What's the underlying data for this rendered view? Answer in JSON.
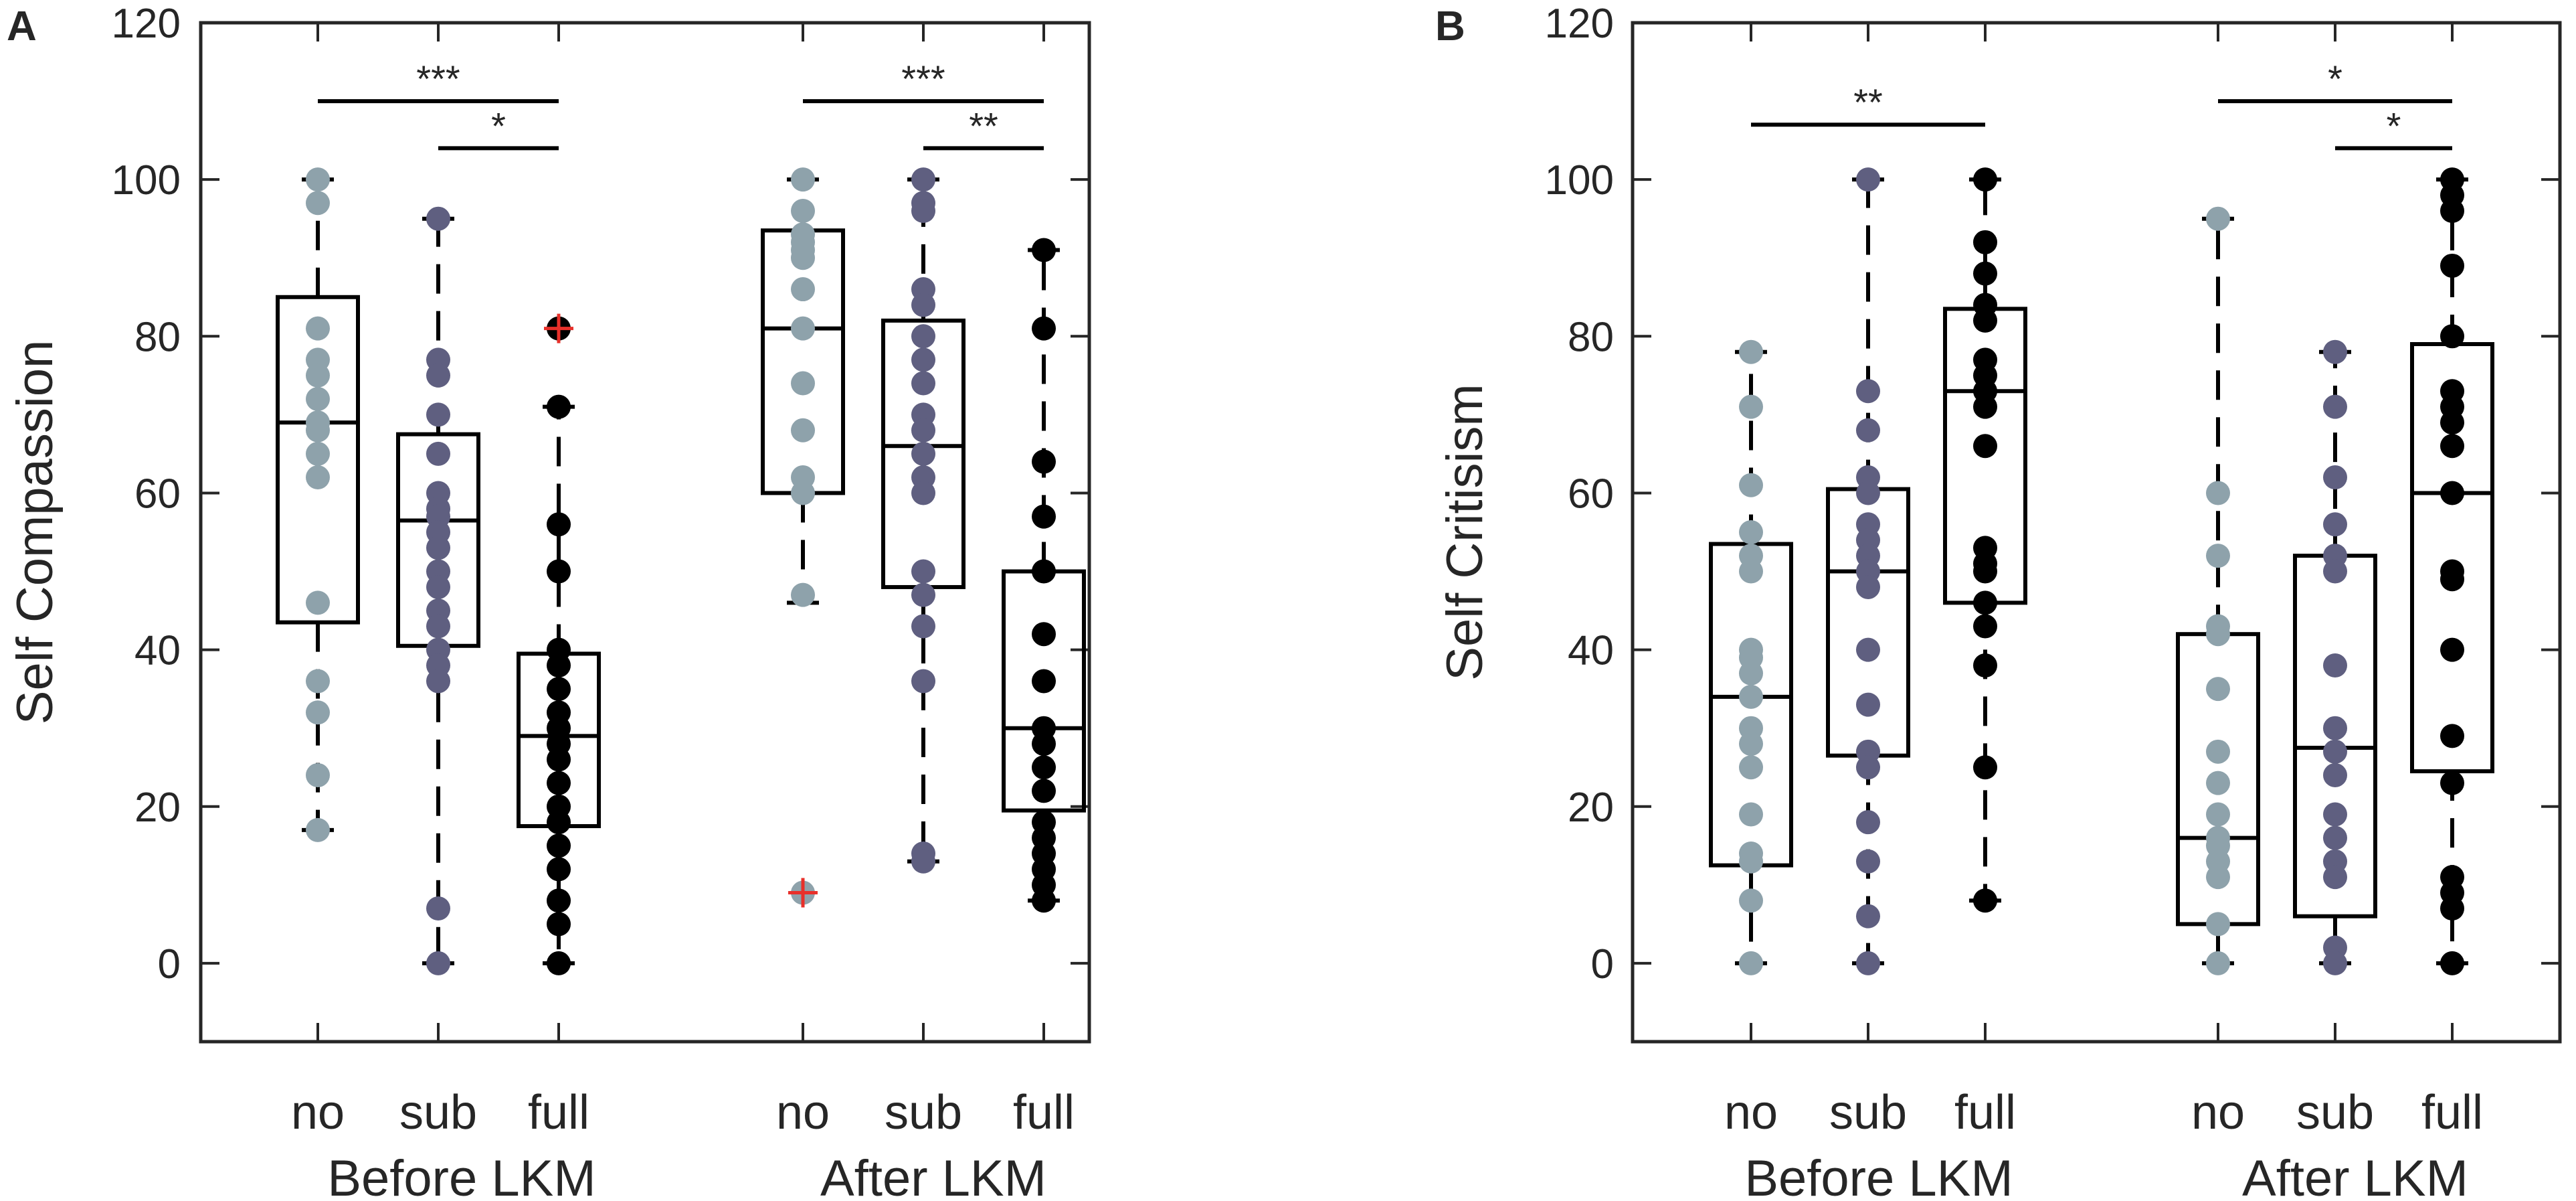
{
  "colors": {
    "no": "#8ea2ab",
    "sub": "#5f5f80",
    "full": "#000000",
    "outlier": "#e8302a",
    "box": "#000000",
    "axis": "#262626"
  },
  "chart_data": [
    {
      "panel": "A",
      "type": "box",
      "ylabel": "Self Compassion",
      "ylim": [
        -10,
        120
      ],
      "yticks": [
        0,
        20,
        40,
        60,
        80,
        100,
        120
      ],
      "conditions": [
        "no",
        "sub",
        "full"
      ],
      "groups": [
        {
          "name": "Before LKM",
          "boxes": [
            {
              "condition": "no",
              "q1": 43.5,
              "median": 69,
              "q3": 85,
              "whisker_low": 17,
              "whisker_high": 100,
              "outliers": [],
              "points": [
                100,
                97,
                81,
                77,
                75,
                72,
                69,
                68,
                65,
                62,
                46,
                36,
                32,
                24,
                17
              ]
            },
            {
              "condition": "sub",
              "q1": 40.5,
              "median": 56.5,
              "q3": 67.5,
              "whisker_low": 0,
              "whisker_high": 95,
              "outliers": [],
              "points": [
                95,
                77,
                75,
                70,
                65,
                60,
                58,
                57,
                55,
                53,
                50,
                48,
                45,
                43,
                40,
                38,
                36,
                7,
                0
              ]
            },
            {
              "condition": "full",
              "q1": 17.5,
              "median": 29,
              "q3": 39.5,
              "whisker_low": 0,
              "whisker_high": 71,
              "outliers": [
                81
              ],
              "points": [
                81,
                71,
                56,
                50,
                40,
                38,
                35,
                32,
                30,
                28,
                26,
                23,
                20,
                18,
                15,
                12,
                8,
                5,
                0
              ]
            }
          ],
          "significance": [
            {
              "pair": [
                "no",
                "full"
              ],
              "label": "***",
              "y": 110
            },
            {
              "pair": [
                "sub",
                "full"
              ],
              "label": "*",
              "y": 104
            }
          ]
        },
        {
          "name": "After LKM",
          "boxes": [
            {
              "condition": "no",
              "q1": 60,
              "median": 81,
              "q3": 93.5,
              "whisker_low": 46,
              "whisker_high": 100,
              "outliers": [
                9
              ],
              "points": [
                100,
                96,
                93,
                92,
                91,
                90,
                86,
                81,
                74,
                68,
                62,
                60,
                47,
                9
              ]
            },
            {
              "condition": "sub",
              "q1": 48,
              "median": 66,
              "q3": 82,
              "whisker_low": 13,
              "whisker_high": 100,
              "outliers": [],
              "points": [
                100,
                97,
                96,
                86,
                84,
                80,
                77,
                74,
                70,
                68,
                65,
                62,
                60,
                50,
                47,
                43,
                36,
                14,
                13
              ]
            },
            {
              "condition": "full",
              "q1": 19.5,
              "median": 30,
              "q3": 50,
              "whisker_low": 8,
              "whisker_high": 91,
              "outliers": [],
              "points": [
                91,
                81,
                64,
                57,
                50,
                42,
                36,
                30,
                28,
                25,
                22,
                18,
                16,
                14,
                12,
                10,
                8
              ]
            }
          ],
          "significance": [
            {
              "pair": [
                "no",
                "full"
              ],
              "label": "***",
              "y": 110
            },
            {
              "pair": [
                "sub",
                "full"
              ],
              "label": "**",
              "y": 104
            }
          ]
        }
      ]
    },
    {
      "panel": "B",
      "type": "box",
      "ylabel": "Self Critisism",
      "ylim": [
        -10,
        120
      ],
      "yticks": [
        0,
        20,
        40,
        60,
        80,
        100,
        120
      ],
      "conditions": [
        "no",
        "sub",
        "full"
      ],
      "groups": [
        {
          "name": "Before LKM",
          "boxes": [
            {
              "condition": "no",
              "q1": 12.5,
              "median": 34,
              "q3": 53.5,
              "whisker_low": 0,
              "whisker_high": 78,
              "outliers": [],
              "points": [
                78,
                71,
                61,
                55,
                52,
                50,
                40,
                39,
                37,
                34,
                30,
                28,
                25,
                19,
                14,
                13,
                8,
                0
              ]
            },
            {
              "condition": "sub",
              "q1": 26.5,
              "median": 50,
              "q3": 60.5,
              "whisker_low": 0,
              "whisker_high": 100,
              "outliers": [],
              "points": [
                100,
                73,
                68,
                62,
                60,
                56,
                54,
                52,
                50,
                48,
                40,
                33,
                27,
                25,
                18,
                13,
                6,
                0
              ]
            },
            {
              "condition": "full",
              "q1": 46,
              "median": 73,
              "q3": 83.5,
              "whisker_low": 8,
              "whisker_high": 100,
              "outliers": [],
              "points": [
                100,
                92,
                88,
                84,
                82,
                77,
                75,
                73,
                71,
                66,
                53,
                51,
                50,
                46,
                43,
                38,
                25,
                8
              ]
            }
          ],
          "significance": [
            {
              "pair": [
                "no",
                "full"
              ],
              "label": "**",
              "y": 107
            }
          ]
        },
        {
          "name": "After LKM",
          "boxes": [
            {
              "condition": "no",
              "q1": 5,
              "median": 16,
              "q3": 42,
              "whisker_low": 0,
              "whisker_high": 95,
              "outliers": [],
              "points": [
                95,
                60,
                52,
                43,
                42,
                35,
                27,
                23,
                19,
                16,
                15,
                13,
                11,
                5,
                0
              ]
            },
            {
              "condition": "sub",
              "q1": 6,
              "median": 27.5,
              "q3": 52,
              "whisker_low": 0,
              "whisker_high": 78,
              "outliers": [],
              "points": [
                78,
                71,
                62,
                56,
                52,
                50,
                38,
                30,
                27,
                24,
                19,
                16,
                13,
                11,
                2,
                0
              ]
            },
            {
              "condition": "full",
              "q1": 24.5,
              "median": 60,
              "q3": 79,
              "whisker_low": 0,
              "whisker_high": 100,
              "outliers": [],
              "points": [
                100,
                98,
                96,
                89,
                80,
                73,
                71,
                69,
                66,
                60,
                50,
                49,
                40,
                29,
                23,
                11,
                9,
                7,
                0
              ]
            }
          ],
          "significance": [
            {
              "pair": [
                "no",
                "full"
              ],
              "label": "*",
              "y": 110
            },
            {
              "pair": [
                "sub",
                "full"
              ],
              "label": "*",
              "y": 104
            }
          ]
        }
      ]
    }
  ]
}
